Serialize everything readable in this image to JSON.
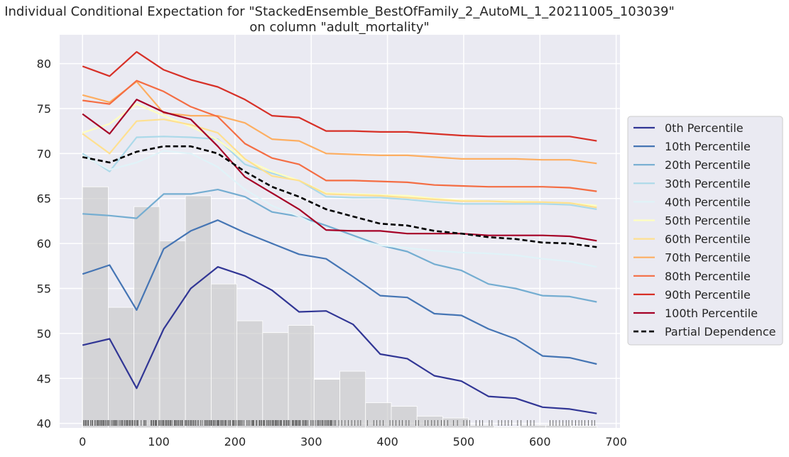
{
  "chart_data": {
    "type": "line",
    "title": "Individual Conditional Expectation for \"StackedEnsemble_BestOfFamily_2_AutoML_1_20211005_103039\"",
    "subtitle": "on column \"adult_mortality\"",
    "xlabel": "",
    "ylabel": "",
    "xlim": [
      -30,
      705
    ],
    "ylim": [
      39.5,
      83.2
    ],
    "x_ticks": [
      0,
      100,
      200,
      300,
      400,
      500,
      600,
      700
    ],
    "y_ticks": [
      40,
      45,
      50,
      55,
      60,
      65,
      70,
      75,
      80
    ],
    "grid": true,
    "legend_position": "right",
    "x": [
      0,
      35.5,
      71,
      106.5,
      142,
      177.5,
      213,
      248.5,
      284,
      319.5,
      355,
      390.5,
      426,
      461.5,
      497,
      532.5,
      568,
      603.5,
      639,
      674.5
    ],
    "series": [
      {
        "name": "0th Percentile",
        "color": "#313695",
        "values": [
          48.7,
          49.4,
          43.9,
          50.5,
          55.0,
          57.4,
          56.4,
          54.8,
          52.4,
          52.5,
          51.0,
          47.7,
          47.2,
          45.3,
          44.7,
          43.0,
          42.8,
          41.8,
          41.6,
          41.1
        ]
      },
      {
        "name": "10th Percentile",
        "color": "#4575b4",
        "values": [
          56.6,
          57.6,
          52.6,
          59.4,
          61.4,
          62.6,
          61.2,
          60.0,
          58.8,
          58.3,
          56.3,
          54.2,
          54.0,
          52.2,
          52.0,
          50.5,
          49.4,
          47.5,
          47.3,
          46.6
        ]
      },
      {
        "name": "20th Percentile",
        "color": "#74add1",
        "values": [
          63.3,
          63.1,
          62.8,
          65.5,
          65.5,
          66.0,
          65.2,
          63.5,
          63.0,
          62.0,
          60.9,
          59.8,
          59.1,
          57.7,
          57.0,
          55.5,
          55.0,
          54.2,
          54.1,
          53.5
        ]
      },
      {
        "name": "30th Percentile",
        "color": "#abd9e9",
        "values": [
          70.0,
          68.0,
          71.8,
          71.9,
          71.8,
          71.6,
          68.8,
          67.8,
          67.0,
          65.2,
          65.1,
          65.1,
          64.9,
          64.6,
          64.4,
          64.4,
          64.4,
          64.4,
          64.3,
          63.8
        ]
      },
      {
        "name": "40th Percentile",
        "color": "#e0f3f8",
        "values": [
          69.8,
          68.2,
          69.0,
          70.3,
          70.0,
          68.5,
          66.0,
          64.2,
          63.0,
          61.5,
          60.5,
          59.8,
          59.5,
          59.2,
          59.0,
          58.9,
          58.7,
          58.3,
          58.0,
          57.4
        ]
      },
      {
        "name": "50th Percentile",
        "color": "#ffffbf",
        "values": [
          72.3,
          73.3,
          75.5,
          74.2,
          73.0,
          71.5,
          69.3,
          68.0,
          67.0,
          65.6,
          65.5,
          65.4,
          65.3,
          65.0,
          64.8,
          64.7,
          64.7,
          64.6,
          64.5,
          64.2
        ]
      },
      {
        "name": "60th Percentile",
        "color": "#fee090",
        "values": [
          72.2,
          70.0,
          73.6,
          73.8,
          73.2,
          72.3,
          69.4,
          67.5,
          67.0,
          65.5,
          65.4,
          65.3,
          65.1,
          64.9,
          64.7,
          64.7,
          64.6,
          64.6,
          64.5,
          64.0
        ]
      },
      {
        "name": "70th Percentile",
        "color": "#fdae61",
        "values": [
          76.5,
          75.7,
          78.0,
          74.5,
          74.2,
          74.2,
          73.4,
          71.6,
          71.4,
          70.0,
          69.9,
          69.8,
          69.8,
          69.6,
          69.4,
          69.4,
          69.4,
          69.3,
          69.3,
          68.9
        ]
      },
      {
        "name": "80th Percentile",
        "color": "#f46d43",
        "values": [
          75.9,
          75.5,
          78.1,
          76.9,
          75.2,
          74.1,
          71.1,
          69.5,
          68.8,
          67.0,
          67.0,
          66.9,
          66.8,
          66.5,
          66.4,
          66.3,
          66.3,
          66.3,
          66.2,
          65.8
        ]
      },
      {
        "name": "90th Percentile",
        "color": "#d73027",
        "values": [
          79.7,
          78.6,
          81.3,
          79.3,
          78.2,
          77.4,
          76.0,
          74.2,
          74.0,
          72.5,
          72.5,
          72.4,
          72.4,
          72.2,
          72.0,
          71.9,
          71.9,
          71.9,
          71.9,
          71.4
        ]
      },
      {
        "name": "100th Percentile",
        "color": "#a50026",
        "values": [
          74.4,
          72.2,
          76.0,
          74.6,
          73.8,
          70.8,
          67.4,
          65.6,
          63.8,
          61.5,
          61.4,
          61.4,
          61.1,
          61.1,
          61.1,
          60.9,
          60.9,
          60.9,
          60.8,
          60.3
        ]
      },
      {
        "name": "Partial Dependence",
        "color": "#000000",
        "dashed": true,
        "values": [
          69.6,
          69.0,
          70.2,
          70.8,
          70.8,
          70.0,
          68.0,
          66.3,
          65.2,
          63.8,
          63.0,
          62.2,
          62.0,
          61.4,
          61.1,
          60.7,
          60.5,
          60.1,
          60.0,
          59.6
        ]
      }
    ],
    "histogram": {
      "color": "#c8c8c8",
      "bin_edges": [
        0,
        33.75,
        67.5,
        101.25,
        135,
        168.75,
        202.5,
        236.25,
        270,
        303.75,
        337.5,
        371.25,
        405,
        438.75,
        472.5,
        506.25,
        540,
        573.75,
        607.5,
        641.25,
        675
      ],
      "values": [
        66.3,
        52.9,
        64.1,
        60.3,
        65.3,
        55.5,
        51.4,
        50.1,
        50.9,
        44.9,
        45.8,
        42.3,
        41.9,
        40.8,
        40.6,
        39.8,
        39.6,
        39.8,
        39.8,
        39.7
      ]
    }
  }
}
